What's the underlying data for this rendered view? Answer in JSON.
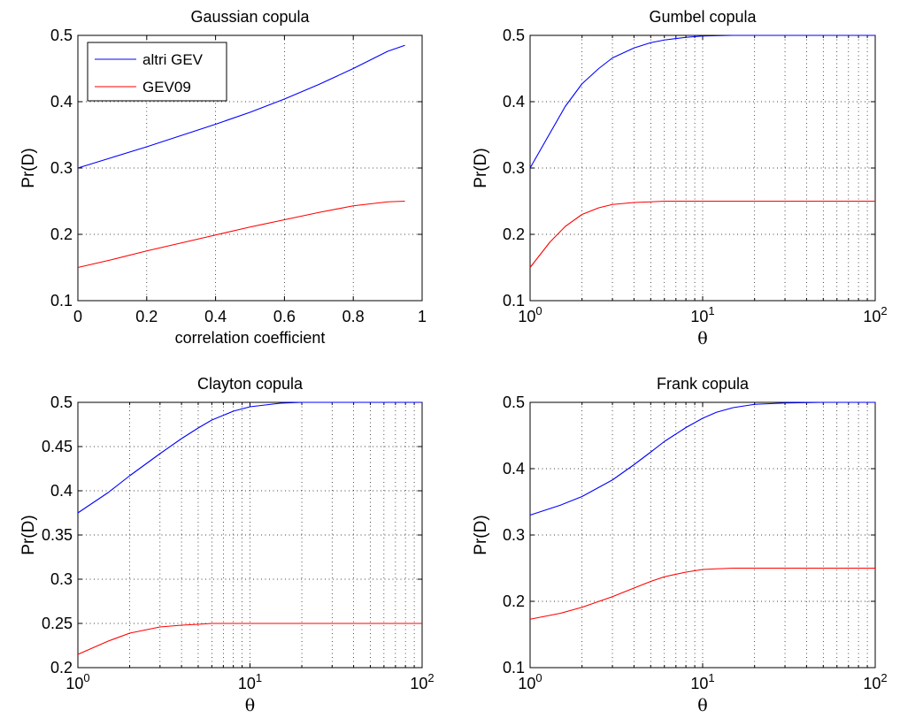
{
  "chart_data": [
    {
      "type": "line",
      "title": "Gaussian copula",
      "xlabel": "correlation coefficient",
      "ylabel": "Pr(D)",
      "xscale": "linear",
      "xlim": [
        0,
        1
      ],
      "ylim": [
        0.1,
        0.5
      ],
      "xticks": [
        0,
        0.2,
        0.4,
        0.6,
        0.8,
        1
      ],
      "xtick_labels": [
        "0",
        "0.2",
        "0.4",
        "0.6",
        "0.8",
        "1"
      ],
      "yticks": [
        0.1,
        0.2,
        0.3,
        0.4,
        0.5
      ],
      "ytick_labels": [
        "0.1",
        "0.2",
        "0.3",
        "0.4",
        "0.5"
      ],
      "grid": true,
      "legend": {
        "position": "top-left",
        "entries": [
          "altri GEV",
          "GEV09"
        ]
      },
      "series": [
        {
          "name": "altri GEV",
          "color": "#0000ff",
          "x": [
            0,
            0.1,
            0.2,
            0.3,
            0.4,
            0.5,
            0.6,
            0.7,
            0.8,
            0.9,
            0.95
          ],
          "y": [
            0.3,
            0.316,
            0.332,
            0.349,
            0.366,
            0.384,
            0.404,
            0.426,
            0.45,
            0.476,
            0.485
          ]
        },
        {
          "name": "GEV09",
          "color": "#ff0000",
          "x": [
            0,
            0.1,
            0.2,
            0.3,
            0.4,
            0.5,
            0.6,
            0.7,
            0.8,
            0.9,
            0.95
          ],
          "y": [
            0.15,
            0.162,
            0.175,
            0.187,
            0.199,
            0.211,
            0.222,
            0.233,
            0.243,
            0.249,
            0.25
          ]
        }
      ]
    },
    {
      "type": "line",
      "title": "Gumbel copula",
      "xlabel": "θ",
      "ylabel": "Pr(D)",
      "xscale": "log",
      "xlim": [
        1,
        100
      ],
      "ylim": [
        0.1,
        0.5
      ],
      "xticks": [
        1,
        10,
        100
      ],
      "xtick_labels": [
        "10^0",
        "10^1",
        "10^2"
      ],
      "yticks": [
        0.1,
        0.2,
        0.3,
        0.4,
        0.5
      ],
      "ytick_labels": [
        "0.1",
        "0.2",
        "0.3",
        "0.4",
        "0.5"
      ],
      "grid": true,
      "series": [
        {
          "color": "#0000ff",
          "x": [
            1,
            1.3,
            1.6,
            2,
            2.5,
            3,
            4,
            5,
            6,
            8,
            10,
            15,
            20,
            50,
            100
          ],
          "y": [
            0.3,
            0.352,
            0.393,
            0.427,
            0.45,
            0.466,
            0.481,
            0.489,
            0.493,
            0.497,
            0.499,
            0.5,
            0.5,
            0.5,
            0.5
          ]
        },
        {
          "color": "#ff0000",
          "x": [
            1,
            1.3,
            1.6,
            2,
            2.5,
            3,
            4,
            5,
            6,
            8,
            10,
            15,
            20,
            50,
            100
          ],
          "y": [
            0.15,
            0.188,
            0.212,
            0.23,
            0.24,
            0.245,
            0.248,
            0.249,
            0.25,
            0.25,
            0.25,
            0.25,
            0.25,
            0.25,
            0.25
          ]
        }
      ]
    },
    {
      "type": "line",
      "title": "Clayton copula",
      "xlabel": "θ",
      "ylabel": "Pr(D)",
      "xscale": "log",
      "xlim": [
        1,
        100
      ],
      "ylim": [
        0.2,
        0.5
      ],
      "xticks": [
        1,
        10,
        100
      ],
      "xtick_labels": [
        "10^0",
        "10^1",
        "10^2"
      ],
      "yticks": [
        0.2,
        0.25,
        0.3,
        0.35,
        0.4,
        0.45,
        0.5
      ],
      "ytick_labels": [
        "0.2",
        "0.25",
        "0.3",
        "0.35",
        "0.4",
        "0.45",
        "0.5"
      ],
      "grid": true,
      "series": [
        {
          "color": "#0000ff",
          "x": [
            1,
            1.5,
            2,
            3,
            4,
            5,
            6,
            8,
            10,
            15,
            20,
            50,
            100
          ],
          "y": [
            0.375,
            0.398,
            0.417,
            0.442,
            0.459,
            0.471,
            0.48,
            0.49,
            0.495,
            0.499,
            0.5,
            0.5,
            0.5
          ]
        },
        {
          "color": "#ff0000",
          "x": [
            1,
            1.5,
            2,
            3,
            4,
            5,
            6,
            8,
            10,
            20,
            50,
            100
          ],
          "y": [
            0.215,
            0.23,
            0.239,
            0.246,
            0.248,
            0.249,
            0.25,
            0.25,
            0.25,
            0.25,
            0.25,
            0.25
          ]
        }
      ]
    },
    {
      "type": "line",
      "title": "Frank copula",
      "xlabel": "θ",
      "ylabel": "Pr(D)",
      "xscale": "log",
      "xlim": [
        1,
        100
      ],
      "ylim": [
        0.1,
        0.5
      ],
      "xticks": [
        1,
        10,
        100
      ],
      "xtick_labels": [
        "10^0",
        "10^1",
        "10^2"
      ],
      "yticks": [
        0.1,
        0.2,
        0.3,
        0.4,
        0.5
      ],
      "ytick_labels": [
        "0.1",
        "0.2",
        "0.3",
        "0.4",
        "0.5"
      ],
      "grid": true,
      "series": [
        {
          "color": "#0000ff",
          "x": [
            1,
            1.5,
            2,
            3,
            4,
            5,
            6,
            8,
            10,
            12,
            15,
            20,
            30,
            50,
            100
          ],
          "y": [
            0.33,
            0.345,
            0.358,
            0.383,
            0.406,
            0.425,
            0.441,
            0.462,
            0.476,
            0.485,
            0.492,
            0.497,
            0.499,
            0.5,
            0.5
          ]
        },
        {
          "color": "#ff0000",
          "x": [
            1,
            1.5,
            2,
            3,
            4,
            5,
            6,
            8,
            10,
            12,
            15,
            20,
            50,
            100
          ],
          "y": [
            0.173,
            0.182,
            0.191,
            0.207,
            0.22,
            0.23,
            0.237,
            0.244,
            0.248,
            0.249,
            0.25,
            0.25,
            0.25,
            0.25
          ]
        }
      ]
    }
  ]
}
